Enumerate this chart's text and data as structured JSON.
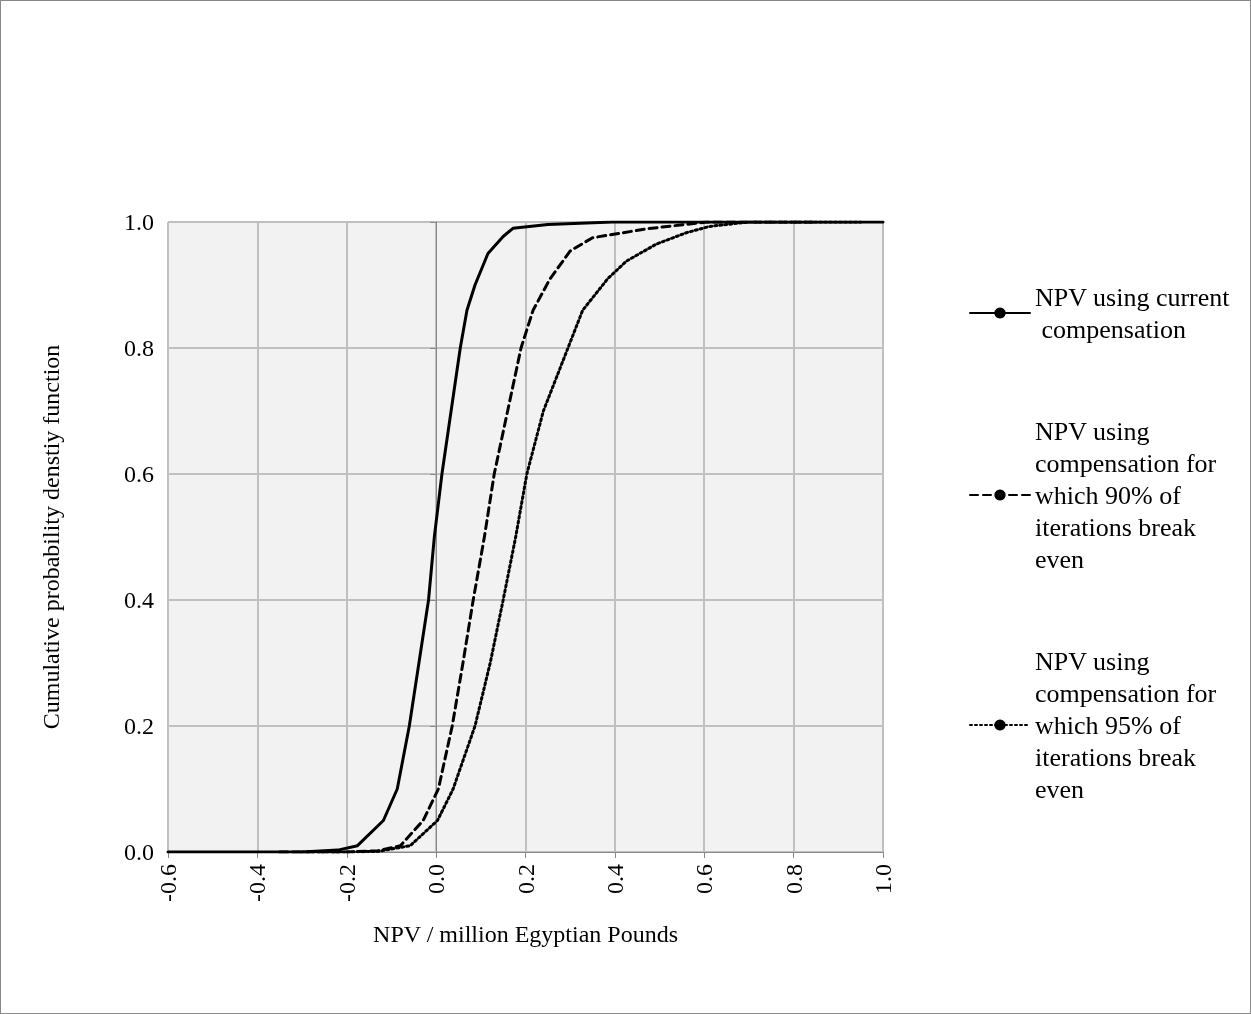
{
  "chart_data": {
    "type": "line",
    "xlabel": "NPV / million Egyptian Pounds",
    "ylabel": "Cumulative probability denstiy function",
    "xlim": [
      -0.6,
      1.0
    ],
    "ylim": [
      0,
      1.0
    ],
    "xticks": [
      {
        "value": -0.6,
        "label": "-0.6"
      },
      {
        "value": -0.4,
        "label": "-0.4"
      },
      {
        "value": -0.2,
        "label": "-0.2"
      },
      {
        "value": 0,
        "label": "0.0"
      },
      {
        "value": 0.2,
        "label": "0.2"
      },
      {
        "value": 0.4,
        "label": "0.4"
      },
      {
        "value": 0.6,
        "label": "0.6"
      },
      {
        "value": 0.8,
        "label": "0.8"
      },
      {
        "value": 1.0,
        "label": "1.0"
      }
    ],
    "yticks": [
      {
        "value": 0,
        "label": "0.0"
      },
      {
        "value": 0.2,
        "label": "0.2"
      },
      {
        "value": 0.4,
        "label": "0.4"
      },
      {
        "value": 0.6,
        "label": "0.6"
      },
      {
        "value": 0.8,
        "label": "0.8"
      },
      {
        "value": 1.0,
        "label": "1.0"
      }
    ],
    "grid": true,
    "legend": "right",
    "marker": "none",
    "series": [
      {
        "name": "NPV using current compensation",
        "color": "#000000",
        "line_style": "solid",
        "x": [
          -0.6,
          -0.3,
          -0.22,
          -0.176,
          -0.118,
          -0.087,
          -0.06,
          -0.017,
          -0.004,
          0.013,
          0.054,
          0.069,
          0.087,
          0.116,
          0.15,
          0.172,
          0.25,
          0.395,
          0.6,
          1.0
        ],
        "values": [
          0,
          0,
          0.003,
          0.01,
          0.05,
          0.1,
          0.2,
          0.4,
          0.5,
          0.6,
          0.8,
          0.86,
          0.9,
          0.95,
          0.977,
          0.99,
          0.996,
          1.0,
          1.0,
          1.0
        ]
      },
      {
        "name": "NPV using compensation for which 90% of iterations break even",
        "color": "#000000",
        "line_style": "dashed",
        "x": [
          -0.35,
          -0.2,
          -0.13,
          -0.08,
          -0.029,
          0.005,
          0.036,
          0.06,
          0.083,
          0.108,
          0.13,
          0.19,
          0.217,
          0.255,
          0.3,
          0.35,
          0.47,
          0.605,
          0.85
        ],
        "values": [
          0,
          0,
          0.002,
          0.01,
          0.05,
          0.1,
          0.2,
          0.3,
          0.4,
          0.5,
          0.6,
          0.8,
          0.86,
          0.91,
          0.954,
          0.975,
          0.989,
          1.0,
          1.0
        ]
      },
      {
        "name": "NPV using compensation for which 95% of iterations break even",
        "color": "#000000",
        "line_style": "dotted",
        "x": [
          -0.3,
          -0.2,
          -0.13,
          -0.058,
          0.003,
          0.038,
          0.087,
          0.121,
          0.15,
          0.178,
          0.203,
          0.24,
          0.295,
          0.328,
          0.384,
          0.426,
          0.493,
          0.56,
          0.612,
          0.7,
          0.95
        ],
        "values": [
          0,
          0,
          0.001,
          0.01,
          0.05,
          0.1,
          0.2,
          0.3,
          0.4,
          0.5,
          0.6,
          0.7,
          0.8,
          0.86,
          0.91,
          0.938,
          0.965,
          0.983,
          0.993,
          1.0,
          1.0
        ]
      }
    ]
  }
}
